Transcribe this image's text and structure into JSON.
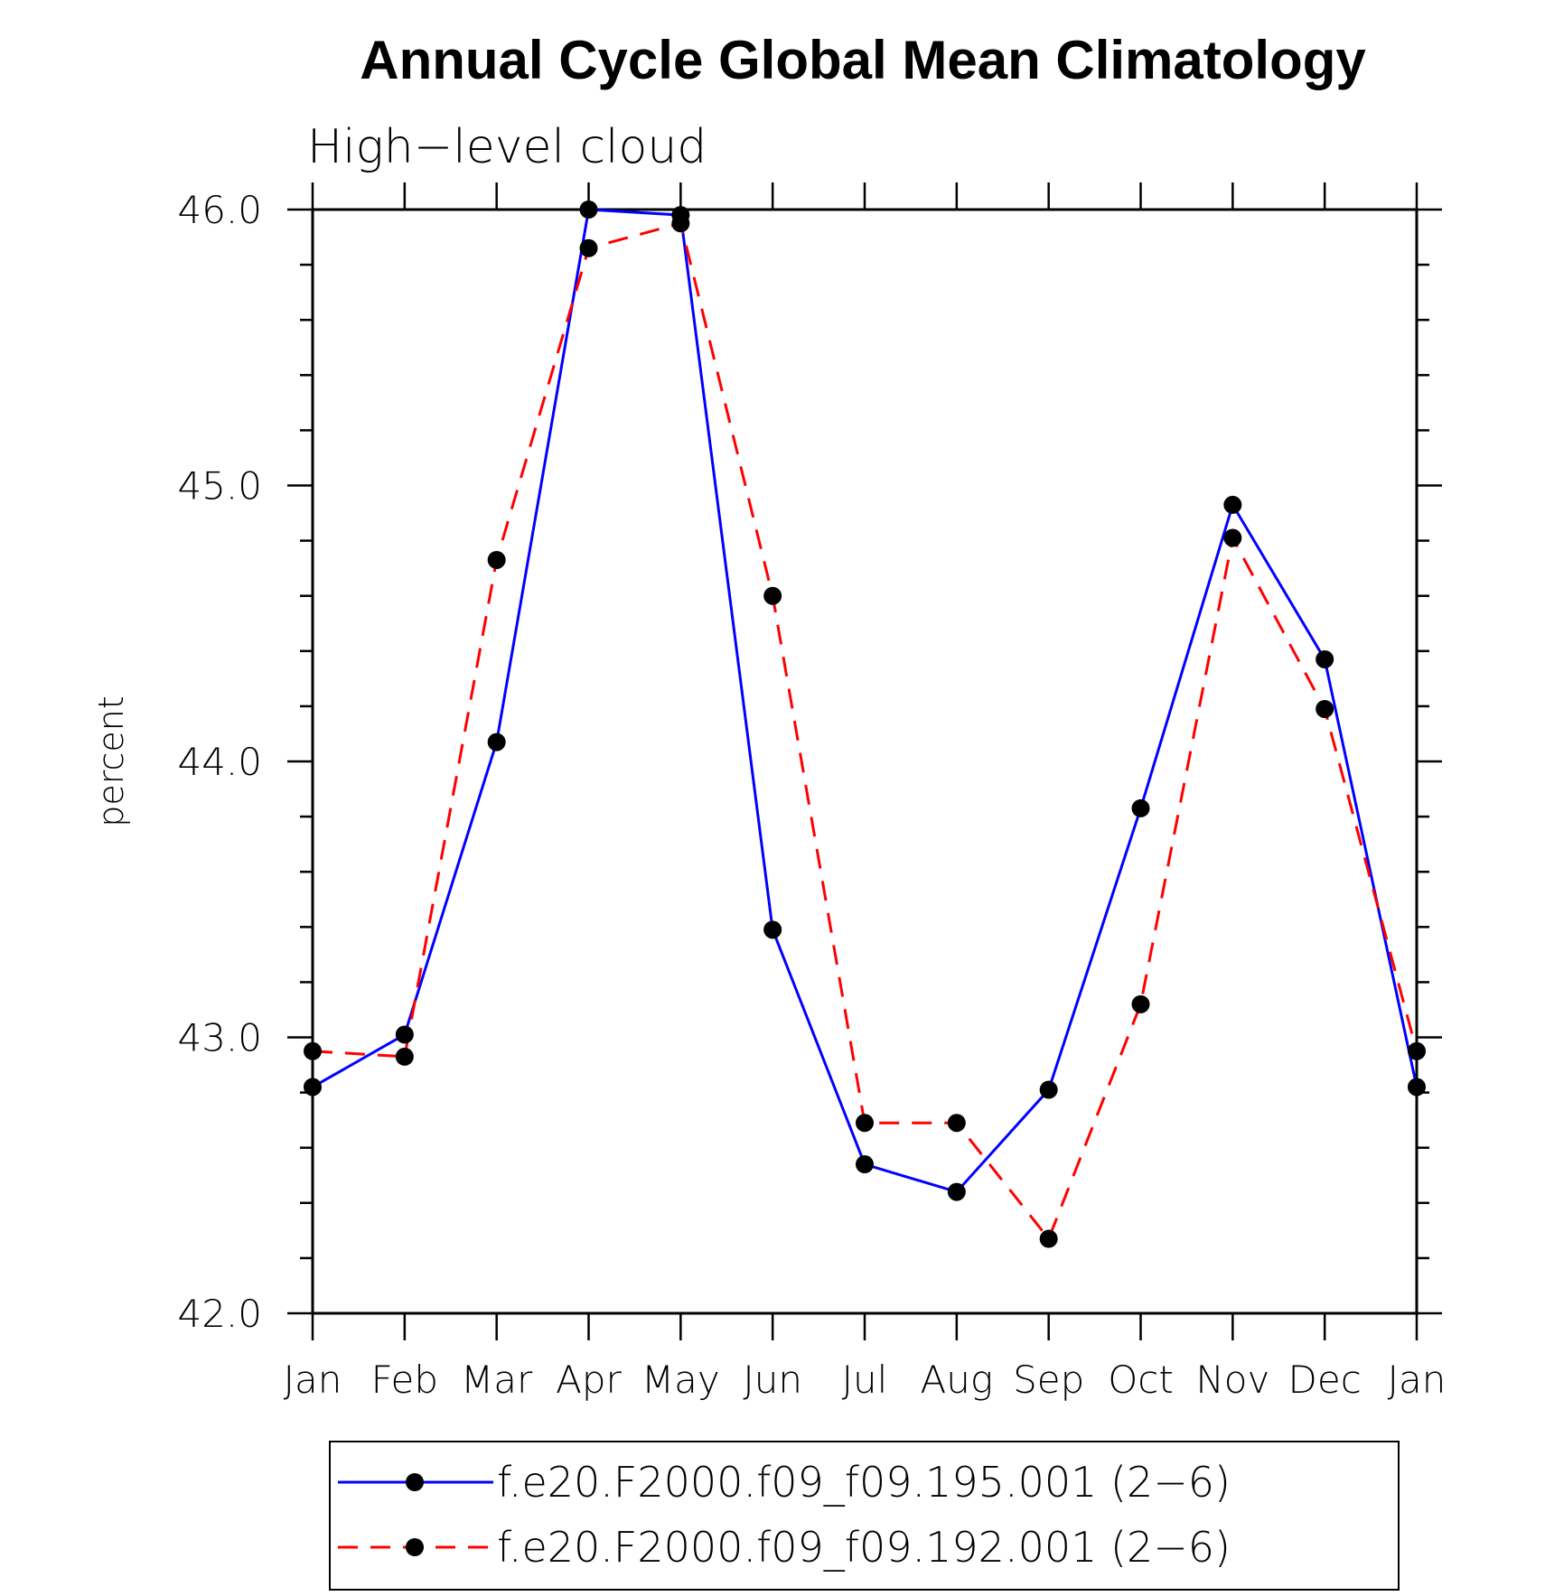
{
  "chart_data": {
    "type": "line",
    "title": "Annual Cycle Global Mean Climatology",
    "subtitle": "High−level cloud",
    "xlabel": "",
    "ylabel": "percent",
    "categories": [
      "Jan",
      "Feb",
      "Mar",
      "Apr",
      "May",
      "Jun",
      "Jul",
      "Aug",
      "Sep",
      "Oct",
      "Nov",
      "Dec",
      "Jan"
    ],
    "ylim": [
      42.0,
      46.0
    ],
    "yticks": [
      "42.0",
      "43.0",
      "44.0",
      "45.0",
      "46.0"
    ],
    "grid": false,
    "legend_position": "bottom",
    "series": [
      {
        "name": "f.e20.F2000.f09_f09.195.001 (2−6)",
        "color": "#0000ff",
        "line_style": "solid",
        "marker": "filled-circle",
        "values": [
          42.82,
          43.01,
          44.07,
          46.0,
          45.98,
          43.39,
          42.54,
          42.44,
          42.81,
          43.83,
          44.93,
          44.37,
          42.82
        ]
      },
      {
        "name": "f.e20.F2000.f09_f09.192.001 (2−6)",
        "color": "#ff0000",
        "line_style": "dashed",
        "marker": "filled-circle",
        "values": [
          42.95,
          42.93,
          44.73,
          45.86,
          45.95,
          44.6,
          42.69,
          42.69,
          42.27,
          43.12,
          44.81,
          44.19,
          42.95
        ]
      }
    ]
  }
}
